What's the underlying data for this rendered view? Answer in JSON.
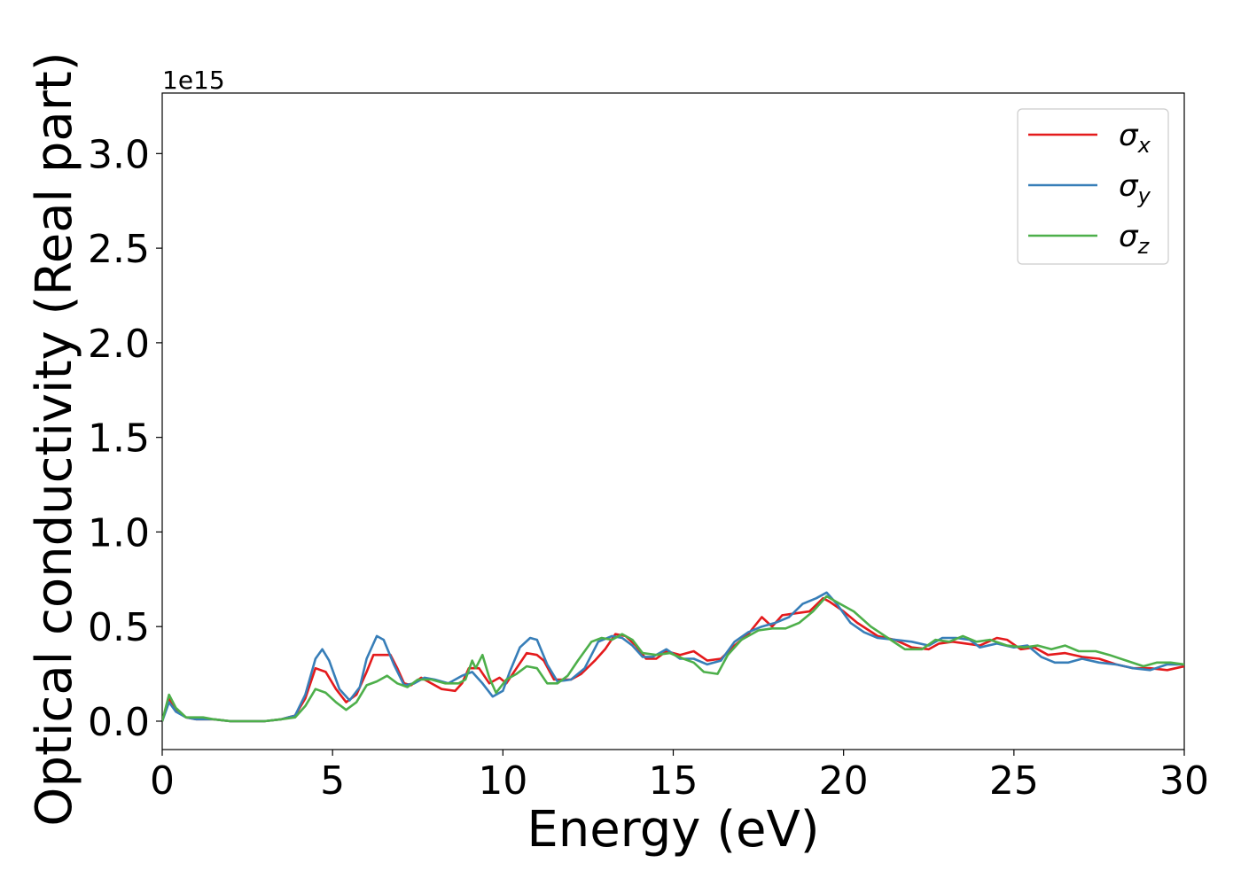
{
  "chart_data": {
    "type": "line",
    "title": "",
    "xlabel": "Energy (eV)",
    "ylabel": "Optical conductivity (Real part)",
    "y_offset_label": "1e15",
    "xlim": [
      0,
      30
    ],
    "ylim": [
      -0.15,
      3.32
    ],
    "x_ticks": [
      "0",
      "5",
      "10",
      "15",
      "20",
      "25",
      "30"
    ],
    "y_ticks": [
      "0.0",
      "0.5",
      "1.0",
      "1.5",
      "2.0",
      "2.5",
      "3.0"
    ],
    "grid": false,
    "legend_position": "top-right",
    "series": [
      {
        "name": "σx",
        "symbol": "σ",
        "subscript": "x",
        "color": "#e41a1c",
        "points": [
          [
            0,
            0.0
          ],
          [
            0.2,
            0.12
          ],
          [
            0.4,
            0.06
          ],
          [
            0.7,
            0.02
          ],
          [
            1.0,
            0.01
          ],
          [
            1.5,
            0.01
          ],
          [
            2.0,
            0.0
          ],
          [
            3.0,
            0.0
          ],
          [
            3.5,
            0.01
          ],
          [
            3.9,
            0.03
          ],
          [
            4.2,
            0.12
          ],
          [
            4.5,
            0.28
          ],
          [
            4.8,
            0.26
          ],
          [
            5.1,
            0.17
          ],
          [
            5.4,
            0.1
          ],
          [
            5.7,
            0.14
          ],
          [
            6.0,
            0.26
          ],
          [
            6.2,
            0.35
          ],
          [
            6.5,
            0.35
          ],
          [
            6.7,
            0.35
          ],
          [
            6.9,
            0.28
          ],
          [
            7.1,
            0.2
          ],
          [
            7.3,
            0.19
          ],
          [
            7.6,
            0.23
          ],
          [
            7.9,
            0.2
          ],
          [
            8.2,
            0.17
          ],
          [
            8.6,
            0.16
          ],
          [
            8.8,
            0.2
          ],
          [
            9.0,
            0.28
          ],
          [
            9.3,
            0.28
          ],
          [
            9.6,
            0.2
          ],
          [
            9.9,
            0.23
          ],
          [
            10.1,
            0.2
          ],
          [
            10.4,
            0.28
          ],
          [
            10.7,
            0.36
          ],
          [
            11.0,
            0.35
          ],
          [
            11.2,
            0.32
          ],
          [
            11.5,
            0.22
          ],
          [
            12.0,
            0.22
          ],
          [
            12.3,
            0.25
          ],
          [
            12.7,
            0.32
          ],
          [
            13.0,
            0.38
          ],
          [
            13.3,
            0.46
          ],
          [
            13.6,
            0.45
          ],
          [
            13.9,
            0.4
          ],
          [
            14.2,
            0.33
          ],
          [
            14.5,
            0.33
          ],
          [
            14.8,
            0.37
          ],
          [
            15.2,
            0.35
          ],
          [
            15.6,
            0.37
          ],
          [
            16.0,
            0.32
          ],
          [
            16.4,
            0.33
          ],
          [
            16.8,
            0.4
          ],
          [
            17.2,
            0.46
          ],
          [
            17.6,
            0.55
          ],
          [
            17.9,
            0.5
          ],
          [
            18.2,
            0.56
          ],
          [
            18.6,
            0.57
          ],
          [
            19.0,
            0.58
          ],
          [
            19.4,
            0.65
          ],
          [
            19.6,
            0.63
          ],
          [
            20.0,
            0.58
          ],
          [
            20.4,
            0.52
          ],
          [
            21.0,
            0.45
          ],
          [
            21.5,
            0.43
          ],
          [
            22.0,
            0.39
          ],
          [
            22.5,
            0.38
          ],
          [
            22.8,
            0.41
          ],
          [
            23.2,
            0.42
          ],
          [
            23.6,
            0.41
          ],
          [
            24.0,
            0.4
          ],
          [
            24.5,
            0.44
          ],
          [
            24.8,
            0.43
          ],
          [
            25.2,
            0.38
          ],
          [
            25.6,
            0.39
          ],
          [
            26.0,
            0.35
          ],
          [
            26.5,
            0.36
          ],
          [
            27.0,
            0.34
          ],
          [
            27.5,
            0.33
          ],
          [
            28.0,
            0.3
          ],
          [
            28.5,
            0.28
          ],
          [
            29.0,
            0.28
          ],
          [
            29.5,
            0.27
          ],
          [
            30.0,
            0.29
          ]
        ]
      },
      {
        "name": "σy",
        "symbol": "σ",
        "subscript": "y",
        "color": "#377eb8",
        "points": [
          [
            0,
            0.0
          ],
          [
            0.2,
            0.1
          ],
          [
            0.4,
            0.05
          ],
          [
            0.7,
            0.02
          ],
          [
            1.0,
            0.01
          ],
          [
            1.5,
            0.01
          ],
          [
            2.0,
            0.0
          ],
          [
            3.0,
            0.0
          ],
          [
            3.5,
            0.01
          ],
          [
            3.9,
            0.03
          ],
          [
            4.2,
            0.14
          ],
          [
            4.5,
            0.33
          ],
          [
            4.7,
            0.38
          ],
          [
            4.9,
            0.32
          ],
          [
            5.2,
            0.17
          ],
          [
            5.5,
            0.11
          ],
          [
            5.8,
            0.18
          ],
          [
            6.0,
            0.33
          ],
          [
            6.3,
            0.45
          ],
          [
            6.5,
            0.43
          ],
          [
            6.8,
            0.3
          ],
          [
            7.1,
            0.19
          ],
          [
            7.4,
            0.2
          ],
          [
            7.7,
            0.23
          ],
          [
            8.0,
            0.22
          ],
          [
            8.4,
            0.2
          ],
          [
            8.8,
            0.24
          ],
          [
            9.1,
            0.26
          ],
          [
            9.4,
            0.2
          ],
          [
            9.7,
            0.13
          ],
          [
            10.0,
            0.16
          ],
          [
            10.2,
            0.26
          ],
          [
            10.5,
            0.39
          ],
          [
            10.8,
            0.44
          ],
          [
            11.0,
            0.43
          ],
          [
            11.3,
            0.3
          ],
          [
            11.6,
            0.21
          ],
          [
            12.0,
            0.22
          ],
          [
            12.4,
            0.28
          ],
          [
            12.8,
            0.42
          ],
          [
            13.2,
            0.45
          ],
          [
            13.5,
            0.44
          ],
          [
            13.8,
            0.4
          ],
          [
            14.1,
            0.34
          ],
          [
            14.4,
            0.34
          ],
          [
            14.8,
            0.38
          ],
          [
            15.2,
            0.33
          ],
          [
            15.6,
            0.33
          ],
          [
            16.0,
            0.3
          ],
          [
            16.4,
            0.32
          ],
          [
            16.8,
            0.42
          ],
          [
            17.2,
            0.47
          ],
          [
            17.6,
            0.5
          ],
          [
            18.0,
            0.52
          ],
          [
            18.4,
            0.55
          ],
          [
            18.8,
            0.62
          ],
          [
            19.2,
            0.65
          ],
          [
            19.5,
            0.68
          ],
          [
            19.8,
            0.62
          ],
          [
            20.2,
            0.52
          ],
          [
            20.6,
            0.47
          ],
          [
            21.0,
            0.44
          ],
          [
            21.5,
            0.43
          ],
          [
            22.0,
            0.42
          ],
          [
            22.5,
            0.4
          ],
          [
            22.9,
            0.44
          ],
          [
            23.3,
            0.44
          ],
          [
            23.7,
            0.43
          ],
          [
            24.0,
            0.39
          ],
          [
            24.5,
            0.41
          ],
          [
            25.0,
            0.39
          ],
          [
            25.4,
            0.4
          ],
          [
            25.8,
            0.34
          ],
          [
            26.2,
            0.31
          ],
          [
            26.6,
            0.31
          ],
          [
            27.0,
            0.33
          ],
          [
            27.5,
            0.31
          ],
          [
            28.0,
            0.3
          ],
          [
            28.5,
            0.28
          ],
          [
            29.0,
            0.27
          ],
          [
            29.5,
            0.3
          ],
          [
            30.0,
            0.3
          ]
        ]
      },
      {
        "name": "σz",
        "symbol": "σ",
        "subscript": "z",
        "color": "#4daf4a",
        "points": [
          [
            0,
            0.0
          ],
          [
            0.2,
            0.14
          ],
          [
            0.4,
            0.07
          ],
          [
            0.7,
            0.02
          ],
          [
            1.2,
            0.02
          ],
          [
            1.5,
            0.01
          ],
          [
            2.0,
            0.0
          ],
          [
            3.0,
            0.0
          ],
          [
            3.5,
            0.01
          ],
          [
            3.9,
            0.02
          ],
          [
            4.2,
            0.08
          ],
          [
            4.5,
            0.17
          ],
          [
            4.8,
            0.15
          ],
          [
            5.1,
            0.1
          ],
          [
            5.4,
            0.06
          ],
          [
            5.7,
            0.1
          ],
          [
            6.0,
            0.19
          ],
          [
            6.3,
            0.21
          ],
          [
            6.6,
            0.24
          ],
          [
            6.9,
            0.2
          ],
          [
            7.2,
            0.18
          ],
          [
            7.5,
            0.22
          ],
          [
            7.9,
            0.22
          ],
          [
            8.3,
            0.2
          ],
          [
            8.7,
            0.2
          ],
          [
            8.9,
            0.22
          ],
          [
            9.1,
            0.32
          ],
          [
            9.2,
            0.28
          ],
          [
            9.4,
            0.35
          ],
          [
            9.6,
            0.23
          ],
          [
            9.8,
            0.15
          ],
          [
            10.1,
            0.22
          ],
          [
            10.4,
            0.25
          ],
          [
            10.7,
            0.29
          ],
          [
            11.0,
            0.28
          ],
          [
            11.3,
            0.2
          ],
          [
            11.6,
            0.2
          ],
          [
            11.9,
            0.24
          ],
          [
            12.2,
            0.32
          ],
          [
            12.6,
            0.42
          ],
          [
            12.9,
            0.44
          ],
          [
            13.2,
            0.43
          ],
          [
            13.5,
            0.46
          ],
          [
            13.8,
            0.43
          ],
          [
            14.1,
            0.36
          ],
          [
            14.5,
            0.35
          ],
          [
            14.9,
            0.36
          ],
          [
            15.3,
            0.33
          ],
          [
            15.6,
            0.31
          ],
          [
            15.9,
            0.26
          ],
          [
            16.3,
            0.25
          ],
          [
            16.6,
            0.35
          ],
          [
            17.0,
            0.43
          ],
          [
            17.5,
            0.48
          ],
          [
            17.9,
            0.49
          ],
          [
            18.3,
            0.49
          ],
          [
            18.7,
            0.52
          ],
          [
            19.1,
            0.58
          ],
          [
            19.5,
            0.66
          ],
          [
            19.9,
            0.62
          ],
          [
            20.3,
            0.58
          ],
          [
            20.8,
            0.5
          ],
          [
            21.3,
            0.44
          ],
          [
            21.8,
            0.38
          ],
          [
            22.3,
            0.38
          ],
          [
            22.7,
            0.43
          ],
          [
            23.1,
            0.42
          ],
          [
            23.5,
            0.45
          ],
          [
            23.9,
            0.42
          ],
          [
            24.3,
            0.43
          ],
          [
            24.8,
            0.4
          ],
          [
            25.3,
            0.39
          ],
          [
            25.7,
            0.4
          ],
          [
            26.1,
            0.38
          ],
          [
            26.5,
            0.4
          ],
          [
            26.9,
            0.37
          ],
          [
            27.4,
            0.37
          ],
          [
            27.8,
            0.35
          ],
          [
            28.3,
            0.32
          ],
          [
            28.8,
            0.29
          ],
          [
            29.2,
            0.31
          ],
          [
            29.6,
            0.31
          ],
          [
            30.0,
            0.3
          ]
        ]
      }
    ]
  }
}
